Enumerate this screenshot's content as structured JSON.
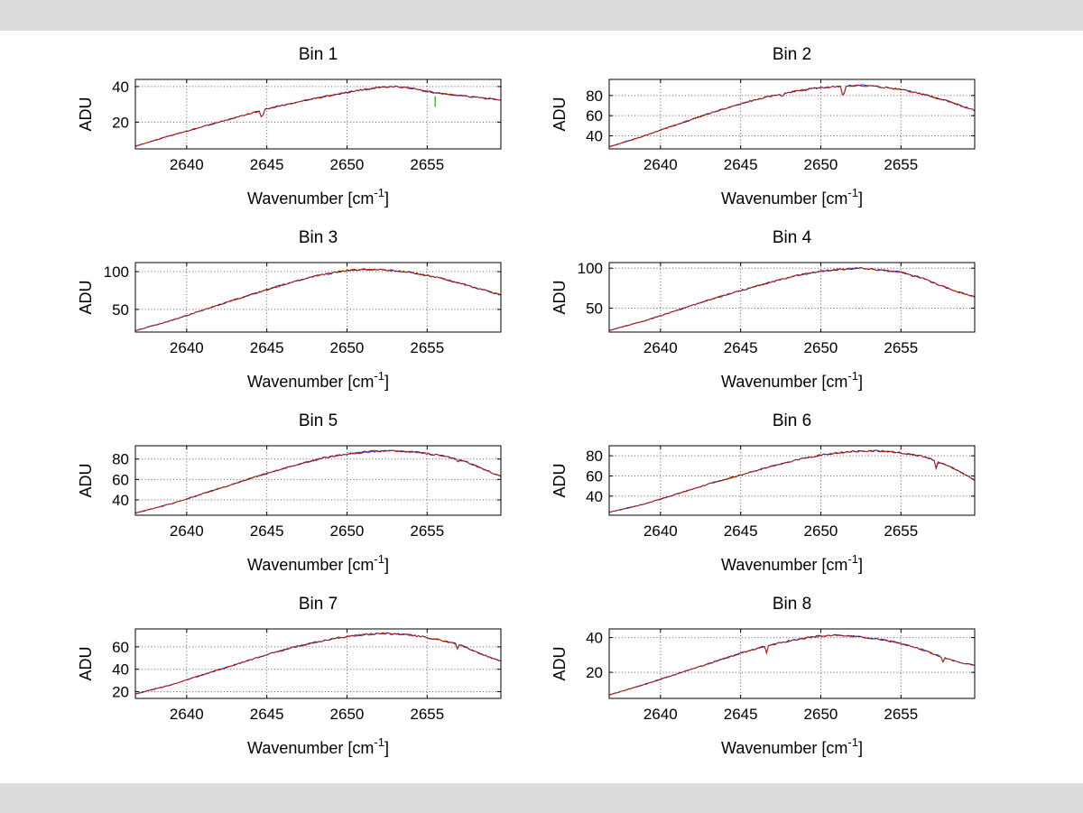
{
  "figure": {
    "background": "#ffffff",
    "chrome_color": "#dcdcdc",
    "line_color": "#b22000",
    "underlay_color": "#2020b0",
    "marker_green": "#00b400",
    "grid_color": "#606060",
    "text_color": "#000000",
    "ylabel": "ADU",
    "xlabel_base": "Wavenumber [cm",
    "xlabel_exponent": "-1",
    "xlabel_close": "]",
    "xticks": [
      2640,
      2645,
      2650,
      2655
    ],
    "xlim": [
      2636.8,
      2659.6
    ]
  },
  "chart_data": [
    {
      "type": "line",
      "title": "Bin 1",
      "ylabel": "ADU",
      "yticks": [
        20,
        40
      ],
      "ylim": [
        5,
        44
      ],
      "points": [
        [
          2636.8,
          6.5
        ],
        [
          2639,
          12.5
        ],
        [
          2641,
          17.5
        ],
        [
          2643,
          22.5
        ],
        [
          2645,
          27.5
        ],
        [
          2647,
          31.5
        ],
        [
          2649,
          35
        ],
        [
          2650.5,
          37.5
        ],
        [
          2652,
          39.5
        ],
        [
          2653,
          40
        ],
        [
          2654,
          39
        ],
        [
          2655.5,
          36.5
        ],
        [
          2657,
          35
        ],
        [
          2658,
          34
        ],
        [
          2659.6,
          32.5
        ]
      ],
      "dips": [
        [
          2644.7,
          6.5
        ]
      ],
      "marker": {
        "x": 2655.5,
        "y_from": 28.5,
        "y_to": 34.5
      }
    },
    {
      "type": "line",
      "title": "Bin 2",
      "ylabel": "ADU",
      "yticks": [
        40,
        60,
        80
      ],
      "ylim": [
        27,
        96
      ],
      "points": [
        [
          2636.8,
          29
        ],
        [
          2639,
          40
        ],
        [
          2641,
          51
        ],
        [
          2643,
          62
        ],
        [
          2645,
          72
        ],
        [
          2646.5,
          78
        ],
        [
          2648,
          83
        ],
        [
          2649.5,
          87
        ],
        [
          2651,
          89
        ],
        [
          2652.5,
          90
        ],
        [
          2653.5,
          89
        ],
        [
          2655,
          86
        ],
        [
          2656.5,
          81
        ],
        [
          2658,
          74
        ],
        [
          2659.6,
          65
        ]
      ],
      "dips": [
        [
          2647.6,
          4
        ],
        [
          2651.4,
          15
        ]
      ]
    },
    {
      "type": "line",
      "title": "Bin 3",
      "ylabel": "ADU",
      "yticks": [
        50,
        100
      ],
      "ylim": [
        20,
        112
      ],
      "points": [
        [
          2636.8,
          22
        ],
        [
          2639,
          35
        ],
        [
          2641,
          49
        ],
        [
          2643,
          63
        ],
        [
          2645,
          76
        ],
        [
          2646.5,
          86
        ],
        [
          2648,
          94
        ],
        [
          2649.5,
          100
        ],
        [
          2650.5,
          102.5
        ],
        [
          2651.5,
          103
        ],
        [
          2652.5,
          102
        ],
        [
          2654,
          99
        ],
        [
          2655.5,
          93
        ],
        [
          2657,
          85
        ],
        [
          2658.3,
          77
        ],
        [
          2659.6,
          69
        ]
      ],
      "dips": []
    },
    {
      "type": "line",
      "title": "Bin 4",
      "ylabel": "ADU",
      "yticks": [
        50,
        100
      ],
      "ylim": [
        20,
        107
      ],
      "points": [
        [
          2636.8,
          22
        ],
        [
          2639,
          34
        ],
        [
          2641,
          47
        ],
        [
          2643,
          60
        ],
        [
          2645,
          72
        ],
        [
          2647,
          83
        ],
        [
          2648.5,
          91
        ],
        [
          2650,
          96
        ],
        [
          2651.5,
          99
        ],
        [
          2652.5,
          100
        ],
        [
          2653.5,
          98
        ],
        [
          2655,
          95
        ],
        [
          2656,
          90
        ],
        [
          2657,
          82
        ],
        [
          2658.3,
          72
        ],
        [
          2659.6,
          64
        ]
      ],
      "dips": [
        [
          2655.8,
          3
        ]
      ]
    },
    {
      "type": "line",
      "title": "Bin 5",
      "ylabel": "ADU",
      "yticks": [
        40,
        60,
        80
      ],
      "ylim": [
        25,
        93
      ],
      "points": [
        [
          2636.8,
          27
        ],
        [
          2639,
          36
        ],
        [
          2641,
          46
        ],
        [
          2643,
          56
        ],
        [
          2645,
          66
        ],
        [
          2647,
          75
        ],
        [
          2648.5,
          81
        ],
        [
          2650,
          85
        ],
        [
          2651.5,
          87.5
        ],
        [
          2653,
          88
        ],
        [
          2654.5,
          86.5
        ],
        [
          2656,
          83
        ],
        [
          2657.5,
          77
        ],
        [
          2658.5,
          70
        ],
        [
          2659.6,
          63
        ]
      ],
      "dips": [
        [
          2656.9,
          3
        ]
      ]
    },
    {
      "type": "line",
      "title": "Bin 6",
      "ylabel": "ADU",
      "yticks": [
        40,
        60,
        80
      ],
      "ylim": [
        21,
        90
      ],
      "points": [
        [
          2636.8,
          24
        ],
        [
          2639,
          32
        ],
        [
          2641,
          42
        ],
        [
          2643,
          52
        ],
        [
          2645,
          61
        ],
        [
          2647,
          70
        ],
        [
          2649,
          78
        ],
        [
          2650.5,
          82
        ],
        [
          2652,
          84.5
        ],
        [
          2653.5,
          85
        ],
        [
          2655,
          83
        ],
        [
          2656.5,
          79
        ],
        [
          2658,
          70
        ],
        [
          2659.6,
          56
        ]
      ],
      "dips": [
        [
          2657.2,
          7
        ]
      ]
    },
    {
      "type": "line",
      "title": "Bin 7",
      "ylabel": "ADU",
      "yticks": [
        20,
        40,
        60
      ],
      "ylim": [
        14,
        76
      ],
      "points": [
        [
          2636.8,
          18
        ],
        [
          2639,
          26
        ],
        [
          2641,
          35
        ],
        [
          2643,
          44
        ],
        [
          2645,
          53
        ],
        [
          2646.5,
          59
        ],
        [
          2648,
          64
        ],
        [
          2649.5,
          68
        ],
        [
          2651,
          71
        ],
        [
          2652.5,
          72
        ],
        [
          2654,
          70.5
        ],
        [
          2655.5,
          67
        ],
        [
          2657,
          62
        ],
        [
          2658.3,
          54
        ],
        [
          2659.6,
          47
        ]
      ],
      "dips": [
        [
          2656.9,
          4
        ]
      ]
    },
    {
      "type": "line",
      "title": "Bin 8",
      "ylabel": "ADU",
      "yticks": [
        20,
        40
      ],
      "ylim": [
        5,
        45
      ],
      "points": [
        [
          2636.8,
          7
        ],
        [
          2639,
          13
        ],
        [
          2641,
          19
        ],
        [
          2643,
          25
        ],
        [
          2645,
          31
        ],
        [
          2646.5,
          35
        ],
        [
          2648,
          38
        ],
        [
          2649.5,
          40.5
        ],
        [
          2651,
          41.5
        ],
        [
          2652.5,
          40.5
        ],
        [
          2654,
          38.5
        ],
        [
          2655.5,
          35.5
        ],
        [
          2656.5,
          32.5
        ],
        [
          2657.5,
          29
        ],
        [
          2658.5,
          26
        ],
        [
          2659.6,
          24
        ]
      ],
      "dips": [
        [
          2646.6,
          4
        ],
        [
          2657.6,
          3
        ]
      ]
    }
  ]
}
